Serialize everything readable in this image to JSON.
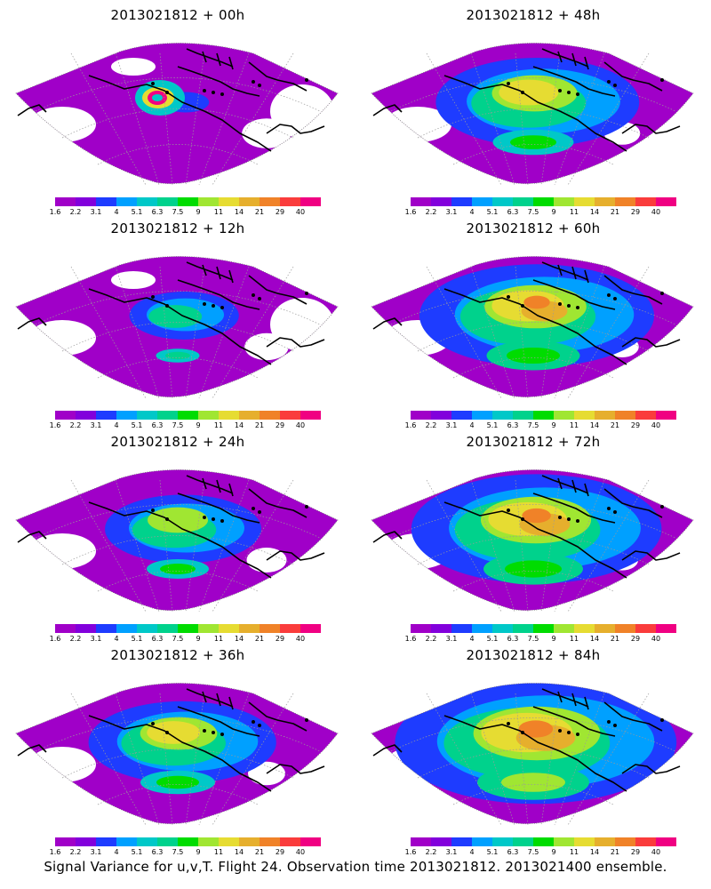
{
  "panels": [
    {
      "title": "2013021812 + 00h",
      "intensity": 0.15,
      "peak": true
    },
    {
      "title": "2013021812 + 48h",
      "intensity": 0.65,
      "peak": false
    },
    {
      "title": "2013021812 + 12h",
      "intensity": 0.35,
      "peak": false
    },
    {
      "title": "2013021812 + 60h",
      "intensity": 0.75,
      "peak": false
    },
    {
      "title": "2013021812 + 24h",
      "intensity": 0.5,
      "peak": false
    },
    {
      "title": "2013021812 + 72h",
      "intensity": 0.8,
      "peak": false
    },
    {
      "title": "2013021812 + 36h",
      "intensity": 0.6,
      "peak": false
    },
    {
      "title": "2013021812 + 84h",
      "intensity": 0.9,
      "peak": false
    }
  ],
  "colorbar": {
    "labels": [
      "1.6",
      "2.2",
      "3.1",
      "4",
      "5.1",
      "6.3",
      "7.5",
      "9",
      "11",
      "14",
      "21",
      "29",
      "40"
    ],
    "colors": [
      "#a000c8",
      "#8200dc",
      "#1e3cff",
      "#00a0ff",
      "#00c8c8",
      "#00d28c",
      "#00dc00",
      "#a0e632",
      "#e6dc32",
      "#e6af2d",
      "#f08228",
      "#fa3c3c",
      "#f00082"
    ]
  },
  "caption": "Signal Variance for u,v,T. Flight 24. Observation time 2013021812. 2013021400 ensemble."
}
